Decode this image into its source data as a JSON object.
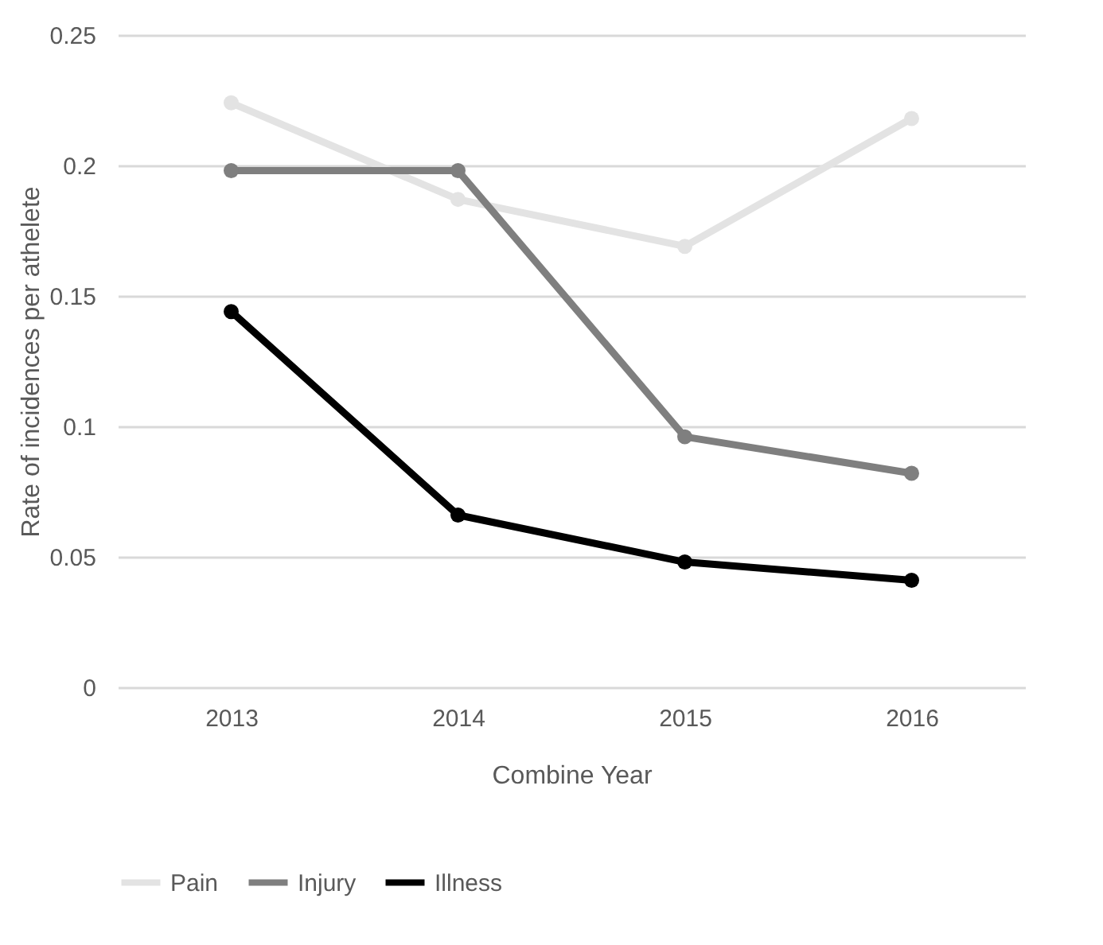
{
  "chart_data": {
    "type": "line",
    "xlabel": "Combine Year",
    "ylabel": "Rate of incidences per athelete",
    "categories": [
      "2013",
      "2014",
      "2015",
      "2016"
    ],
    "series": [
      {
        "name": "Pain",
        "color": "#e3e3e3",
        "values": [
          0.224,
          0.187,
          0.169,
          0.218
        ]
      },
      {
        "name": "Injury",
        "color": "#7f7f7f",
        "values": [
          0.198,
          0.198,
          0.096,
          0.082
        ]
      },
      {
        "name": "Illness",
        "color": "#000000",
        "values": [
          0.144,
          0.066,
          0.048,
          0.041
        ]
      }
    ],
    "ylim": [
      0,
      0.25
    ],
    "yticks": [
      0,
      0.05,
      0.1,
      0.15,
      0.2,
      0.25
    ],
    "grid": "y",
    "legend": "bottom",
    "marker": "circle",
    "line_style": "solid"
  }
}
